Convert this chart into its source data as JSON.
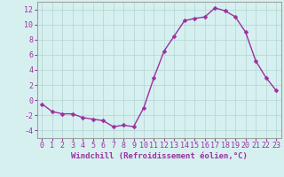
{
  "x": [
    0,
    1,
    2,
    3,
    4,
    5,
    6,
    7,
    8,
    9,
    10,
    11,
    12,
    13,
    14,
    15,
    16,
    17,
    18,
    19,
    20,
    21,
    22,
    23
  ],
  "y": [
    -0.5,
    -1.5,
    -1.8,
    -1.8,
    -2.3,
    -2.5,
    -2.7,
    -3.5,
    -3.3,
    -3.5,
    -1.0,
    3.0,
    6.5,
    8.5,
    10.5,
    10.8,
    11.0,
    12.2,
    11.8,
    11.0,
    9.0,
    5.2,
    3.0,
    1.3
  ],
  "line_color": "#9b30a0",
  "marker": "D",
  "markersize": 2.5,
  "linewidth": 1.0,
  "bg_color": "#d6f0f0",
  "grid_color": "#b8d8d8",
  "xlabel": "Windchill (Refroidissement éolien,°C)",
  "xlabel_fontsize": 6.5,
  "ylim": [
    -5,
    13
  ],
  "xlim": [
    -0.5,
    23.5
  ],
  "yticks": [
    -4,
    -2,
    0,
    2,
    4,
    6,
    8,
    10,
    12
  ],
  "xticks": [
    0,
    1,
    2,
    3,
    4,
    5,
    6,
    7,
    8,
    9,
    10,
    11,
    12,
    13,
    14,
    15,
    16,
    17,
    18,
    19,
    20,
    21,
    22,
    23
  ],
  "tick_fontsize": 6,
  "spine_color": "#a0a0a0"
}
